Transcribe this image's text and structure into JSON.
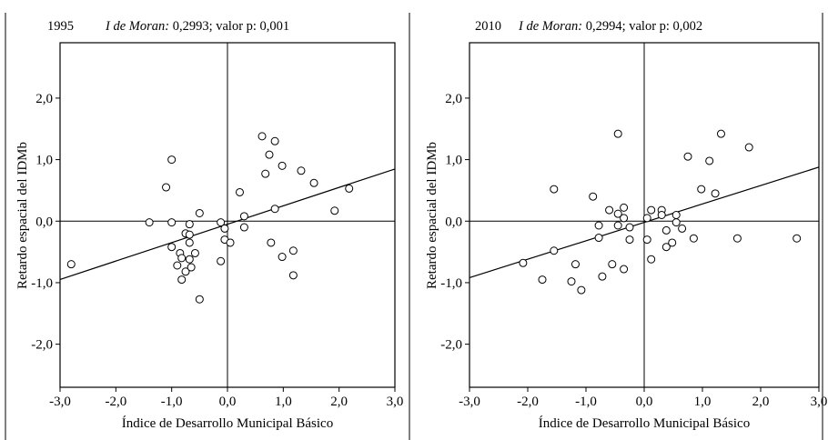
{
  "chart_data": [
    {
      "type": "scatter",
      "year": "1995",
      "stat_label": "I de Moran:",
      "stat_rest": " 0,2993; valor p: 0,001",
      "xlabel": "Índice de Desarrollo Municipal Básico",
      "ylabel": "Retardo espacial del IDMb",
      "xlim": [
        -3.0,
        3.0
      ],
      "ylim": [
        -2.7,
        2.9
      ],
      "xticks": [
        -3.0,
        -2.0,
        -1.0,
        0.0,
        1.0,
        2.0,
        3.0
      ],
      "xtick_labels": [
        "-3,0",
        "-2,0",
        "-1,0",
        "0,0",
        "1,0",
        "2,0",
        "3,0"
      ],
      "yticks": [
        -2.0,
        -1.0,
        0.0,
        1.0,
        2.0
      ],
      "ytick_labels": [
        "-2,0",
        "-1,0",
        "0,0",
        "1,0",
        "2,0"
      ],
      "fit_line": {
        "slope": 0.2993,
        "intercept": -0.05
      },
      "points": [
        [
          -2.8,
          -0.7
        ],
        [
          -1.4,
          -0.02
        ],
        [
          -1.1,
          0.55
        ],
        [
          -1.0,
          1.0
        ],
        [
          -1.0,
          -0.02
        ],
        [
          -1.0,
          -0.42
        ],
        [
          -0.9,
          -0.72
        ],
        [
          -0.85,
          -0.52
        ],
        [
          -0.82,
          -0.6
        ],
        [
          -0.82,
          -0.95
        ],
        [
          -0.75,
          -0.82
        ],
        [
          -0.75,
          -0.2
        ],
        [
          -0.68,
          -0.05
        ],
        [
          -0.68,
          -0.22
        ],
        [
          -0.68,
          -0.35
        ],
        [
          -0.68,
          -0.62
        ],
        [
          -0.65,
          -0.75
        ],
        [
          -0.58,
          -0.52
        ],
        [
          -0.5,
          0.13
        ],
        [
          -0.5,
          -1.27
        ],
        [
          -0.12,
          -0.02
        ],
        [
          -0.12,
          -0.65
        ],
        [
          -0.05,
          -0.12
        ],
        [
          -0.05,
          -0.3
        ],
        [
          0.05,
          -0.35
        ],
        [
          0.22,
          0.47
        ],
        [
          0.3,
          0.08
        ],
        [
          0.3,
          -0.1
        ],
        [
          0.62,
          1.38
        ],
        [
          0.68,
          0.77
        ],
        [
          0.75,
          1.08
        ],
        [
          0.78,
          -0.35
        ],
        [
          0.85,
          1.3
        ],
        [
          0.85,
          0.2
        ],
        [
          0.98,
          0.9
        ],
        [
          0.98,
          -0.58
        ],
        [
          1.18,
          -0.48
        ],
        [
          1.18,
          -0.88
        ],
        [
          1.32,
          0.82
        ],
        [
          1.55,
          0.62
        ],
        [
          1.92,
          0.17
        ],
        [
          2.18,
          0.53
        ]
      ]
    },
    {
      "type": "scatter",
      "year": "2010",
      "stat_label": "I de Moran:",
      "stat_rest": " 0,2994; valor p: 0,002",
      "xlabel": "Índice de Desarrollo Municipal Básico",
      "ylabel": "Retardo espacial del IDMb",
      "xlim": [
        -3.0,
        3.0
      ],
      "ylim": [
        -2.7,
        2.9
      ],
      "xticks": [
        -3.0,
        -2.0,
        -1.0,
        0.0,
        1.0,
        2.0,
        3.0
      ],
      "xtick_labels": [
        "-3,0",
        "-2,0",
        "-1,0",
        "0,0",
        "1,0",
        "2,0",
        "3,0"
      ],
      "yticks": [
        -2.0,
        -1.0,
        0.0,
        1.0,
        2.0
      ],
      "ytick_labels": [
        "-2,0",
        "-1,0",
        "0,0",
        "1,0",
        "2,0"
      ],
      "fit_line": {
        "slope": 0.2994,
        "intercept": -0.02
      },
      "points": [
        [
          -2.08,
          -0.68
        ],
        [
          -1.75,
          -0.95
        ],
        [
          -1.55,
          0.52
        ],
        [
          -1.55,
          -0.48
        ],
        [
          -1.25,
          -0.98
        ],
        [
          -1.18,
          -0.7
        ],
        [
          -1.08,
          -1.12
        ],
        [
          -0.88,
          0.4
        ],
        [
          -0.78,
          -0.07
        ],
        [
          -0.78,
          -0.27
        ],
        [
          -0.72,
          -0.9
        ],
        [
          -0.6,
          0.18
        ],
        [
          -0.55,
          -0.7
        ],
        [
          -0.45,
          1.42
        ],
        [
          -0.45,
          0.12
        ],
        [
          -0.45,
          -0.07
        ],
        [
          -0.35,
          0.22
        ],
        [
          -0.35,
          0.05
        ],
        [
          -0.35,
          -0.78
        ],
        [
          -0.25,
          -0.1
        ],
        [
          -0.25,
          -0.3
        ],
        [
          0.05,
          0.05
        ],
        [
          0.05,
          -0.3
        ],
        [
          0.12,
          0.18
        ],
        [
          0.12,
          -0.62
        ],
        [
          0.3,
          0.18
        ],
        [
          0.3,
          0.1
        ],
        [
          0.38,
          -0.15
        ],
        [
          0.38,
          -0.42
        ],
        [
          0.48,
          -0.35
        ],
        [
          0.55,
          0.1
        ],
        [
          0.55,
          -0.02
        ],
        [
          0.65,
          -0.12
        ],
        [
          0.75,
          1.05
        ],
        [
          0.85,
          -0.28
        ],
        [
          0.98,
          0.52
        ],
        [
          1.12,
          0.98
        ],
        [
          1.22,
          0.45
        ],
        [
          1.32,
          1.42
        ],
        [
          1.6,
          -0.28
        ],
        [
          1.8,
          1.2
        ],
        [
          2.62,
          -0.28
        ]
      ]
    }
  ]
}
